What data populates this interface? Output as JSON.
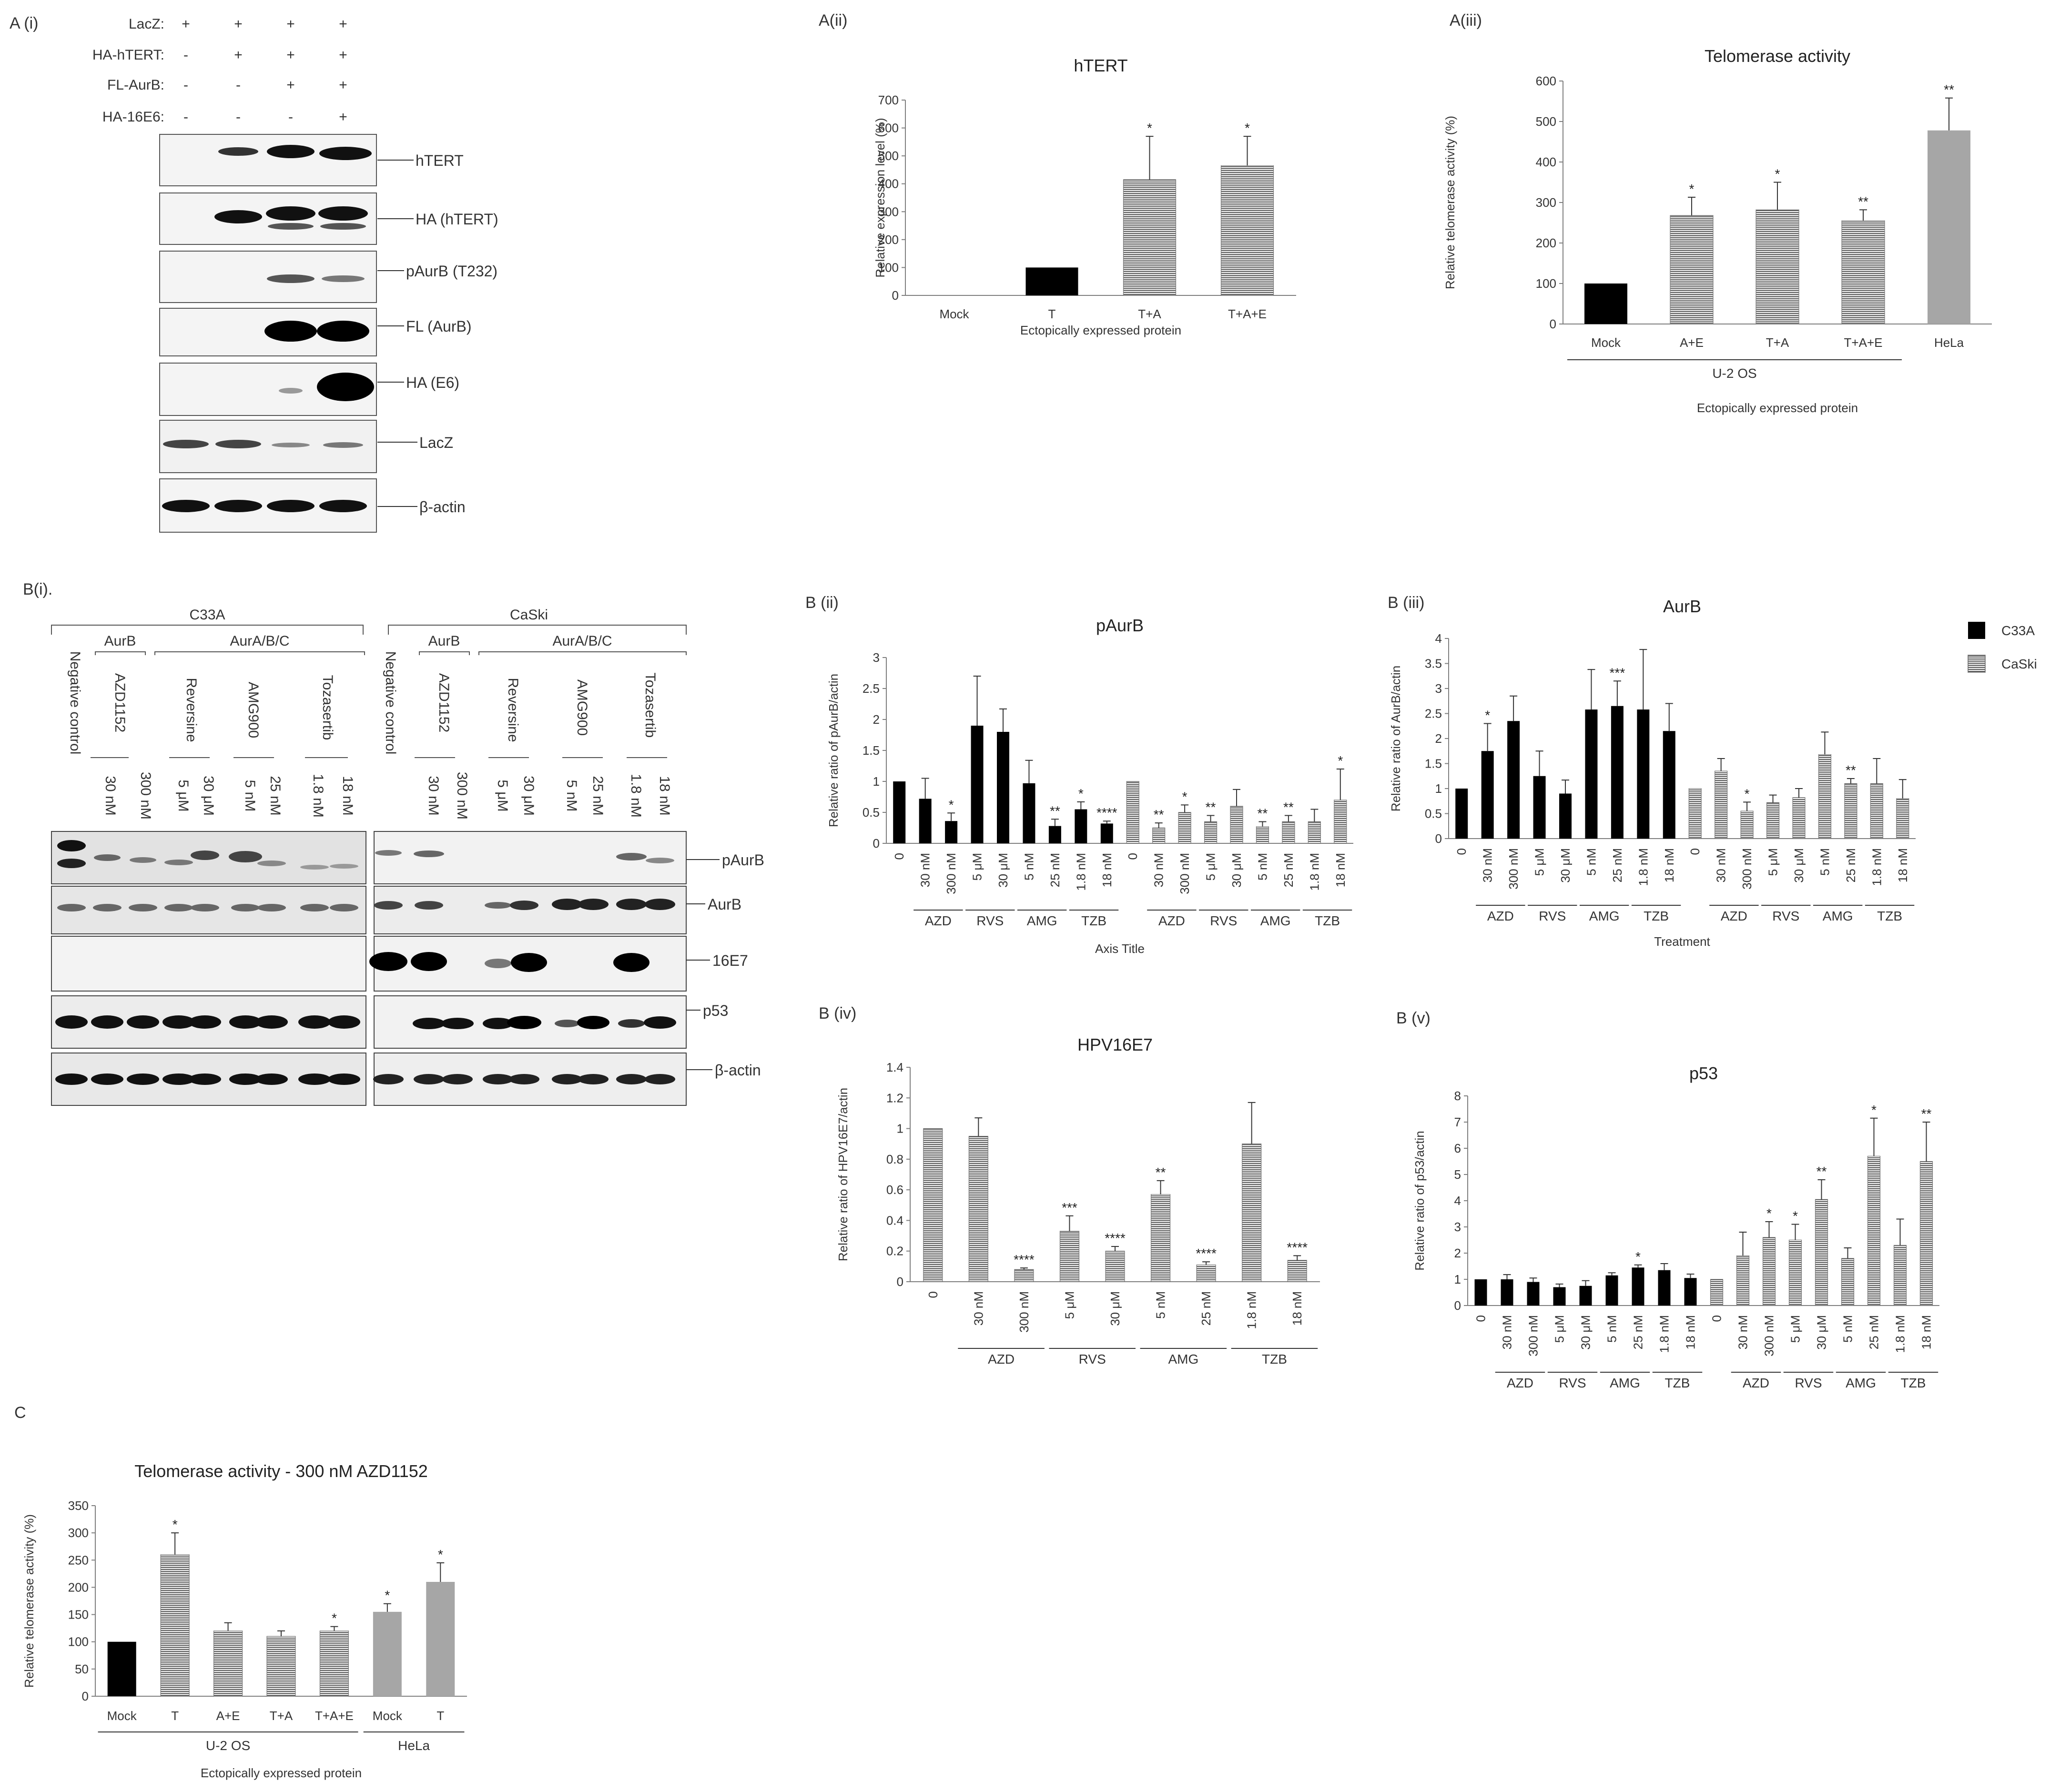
{
  "panels": {
    "ai": "A (i)",
    "aii": "A(ii)",
    "aiii": "A(iii)",
    "bi": "B(i).",
    "bii": "B (ii)",
    "biii": "B (iii)",
    "biv": "B (iv)",
    "bv": "B (v)",
    "c": "C"
  },
  "blot_a": {
    "row_labels": [
      "LacZ:",
      "HA-hTERT:",
      "FL-AurB:",
      "HA-16E6:"
    ],
    "row_signs": [
      [
        "+",
        "+",
        "+",
        "+"
      ],
      [
        "-",
        "+",
        "+",
        "+"
      ],
      [
        "-",
        "-",
        "+",
        "+"
      ],
      [
        "-",
        "-",
        "-",
        "+"
      ]
    ],
    "bands": [
      "hTERT",
      "HA (hTERT)",
      "pAurB (T232)",
      "FL (AurB)",
      "HA (E6)",
      "LacZ",
      "β-actin"
    ]
  },
  "blot_b": {
    "cell_lines": [
      "C33A",
      "CaSki"
    ],
    "target_groups": [
      "AurB",
      "AurA/B/C",
      "AurB",
      "AurA/B/C"
    ],
    "drugs": [
      "AZD1152",
      "Reversine",
      "AMG900",
      "Tozasertib",
      "AZD1152",
      "Reversine",
      "AMG900",
      "Tozasertib"
    ],
    "negative_control": "Negative control",
    "lanes": [
      "30 nM",
      "300 nM",
      "5 μM",
      "30 μM",
      "5 nM",
      "25 nM",
      "1.8 nM",
      "18 nM",
      "30 nM",
      "300 nM",
      "5 μM",
      "30 μM",
      "5 nM",
      "25 nM",
      "1.8 nM",
      "18 nM"
    ],
    "bands": [
      "pAurB",
      "AurB",
      "16E7",
      "p53",
      "β-actin"
    ]
  },
  "legend": {
    "c33a": "C33A",
    "caski": "CaSki"
  },
  "colors": {
    "black": "#000000",
    "gray": "#a6a6a6",
    "axis": "#7f7f7f",
    "stripe": "#555555"
  },
  "chart_data": [
    {
      "id": "aii",
      "type": "bar",
      "title": "hTERT",
      "xlabel": "Ectopically expressed protein",
      "ylabel": "Relative expression level (%)",
      "ylim": [
        0,
        700
      ],
      "yticks": [
        0,
        100,
        200,
        300,
        400,
        500,
        600,
        700
      ],
      "categories": [
        "Mock",
        "T",
        "T+A",
        "T+A+E"
      ],
      "values": [
        0,
        100,
        415,
        465
      ],
      "errors": [
        0,
        0,
        155,
        105
      ],
      "stars": [
        "",
        "",
        "*",
        "*"
      ],
      "fills": [
        "black",
        "black",
        "stripe",
        "stripe"
      ]
    },
    {
      "id": "aiii",
      "type": "bar",
      "title": "Telomerase activity",
      "xlabel": "Ectopically expressed protein",
      "ylabel": "Relative telomerase activity (%)",
      "ylim": [
        0,
        600
      ],
      "yticks": [
        0,
        100,
        200,
        300,
        400,
        500,
        600
      ],
      "categories": [
        "Mock",
        "A+E",
        "T+A",
        "T+A+E",
        "HeLa"
      ],
      "values": [
        100,
        268,
        282,
        255,
        478
      ],
      "errors": [
        0,
        45,
        68,
        27,
        80
      ],
      "stars": [
        "",
        "*",
        "*",
        "**",
        "**"
      ],
      "fills": [
        "black",
        "stripe",
        "stripe",
        "stripe",
        "gray"
      ],
      "group_labels": [
        {
          "label": "U-2 OS",
          "from": 0,
          "to": 3
        }
      ]
    },
    {
      "id": "bii",
      "type": "bar",
      "title": "pAurB",
      "xlabel": "Axis Title",
      "ylabel": "Relative ratio of pAurB/actin",
      "ylim": [
        0,
        3
      ],
      "yticks": [
        0,
        0.5,
        1,
        1.5,
        2,
        2.5,
        3
      ],
      "categories": [
        "0",
        "30 nM",
        "300 nM",
        "5 μM",
        "30 μM",
        "5 nM",
        "25 nM",
        "1.8 nM",
        "18 nM",
        "0",
        "30 nM",
        "300 nM",
        "5 μM",
        "30 μM",
        "5 nM",
        "25 nM",
        "1.8 nM",
        "18 nM"
      ],
      "values": [
        1,
        0.72,
        0.36,
        1.9,
        1.8,
        0.97,
        0.28,
        0.55,
        0.32,
        1,
        0.25,
        0.5,
        0.35,
        0.6,
        0.27,
        0.35,
        0.35,
        0.7
      ],
      "errors": [
        0,
        0.33,
        0.13,
        0.8,
        0.37,
        0.37,
        0.11,
        0.12,
        0.04,
        0,
        0.08,
        0.12,
        0.1,
        0.27,
        0.08,
        0.1,
        0.2,
        0.5
      ],
      "stars": [
        "",
        "",
        "*",
        "",
        "",
        "",
        "**",
        "*",
        "****",
        "",
        "**",
        "*",
        "**",
        "",
        "**",
        "**",
        "",
        "*"
      ],
      "fills": [
        "black",
        "black",
        "black",
        "black",
        "black",
        "black",
        "black",
        "black",
        "black",
        "stripe",
        "stripe",
        "stripe",
        "stripe",
        "stripe",
        "stripe",
        "stripe",
        "stripe",
        "stripe"
      ],
      "group_labels": [
        {
          "label": "AZD",
          "from": 1,
          "to": 2
        },
        {
          "label": "RVS",
          "from": 3,
          "to": 4
        },
        {
          "label": "AMG",
          "from": 5,
          "to": 6
        },
        {
          "label": "TZB",
          "from": 7,
          "to": 8
        },
        {
          "label": "AZD",
          "from": 10,
          "to": 11
        },
        {
          "label": "RVS",
          "from": 12,
          "to": 13
        },
        {
          "label": "AMG",
          "from": 14,
          "to": 15
        },
        {
          "label": "TZB",
          "from": 16,
          "to": 17
        }
      ]
    },
    {
      "id": "biii",
      "type": "bar",
      "title": "AurB",
      "xlabel": "Treatment",
      "ylabel": "Relative ratio of AurB/actin",
      "ylim": [
        0,
        4
      ],
      "yticks": [
        0,
        0.5,
        1,
        1.5,
        2,
        2.5,
        3,
        3.5,
        4
      ],
      "categories": [
        "0",
        "30 nM",
        "300 nM",
        "5 μM",
        "30 μM",
        "5 nM",
        "25 nM",
        "1.8 nM",
        "18 nM",
        "0",
        "30 nM",
        "300 nM",
        "5 μM",
        "30 μM",
        "5 nM",
        "25 nM",
        "1.8 nM",
        "18 nM"
      ],
      "values": [
        1,
        1.75,
        2.35,
        1.25,
        0.9,
        2.58,
        2.65,
        2.58,
        2.15,
        1,
        1.35,
        0.55,
        0.72,
        0.82,
        1.68,
        1.1,
        1.1,
        0.8
      ],
      "errors": [
        0,
        0.55,
        0.5,
        0.5,
        0.27,
        0.8,
        0.5,
        1.2,
        0.55,
        0,
        0.25,
        0.18,
        0.15,
        0.18,
        0.45,
        0.1,
        0.5,
        0.38
      ],
      "stars": [
        "",
        "*",
        "",
        "",
        "",
        "",
        "***",
        "",
        "",
        "",
        "",
        "*",
        "",
        "",
        "",
        "**",
        "",
        ""
      ],
      "fills": [
        "black",
        "black",
        "black",
        "black",
        "black",
        "black",
        "black",
        "black",
        "black",
        "stripe",
        "stripe",
        "stripe",
        "stripe",
        "stripe",
        "stripe",
        "stripe",
        "stripe",
        "stripe"
      ],
      "group_labels": [
        {
          "label": "AZD",
          "from": 1,
          "to": 2
        },
        {
          "label": "RVS",
          "from": 3,
          "to": 4
        },
        {
          "label": "AMG",
          "from": 5,
          "to": 6
        },
        {
          "label": "TZB",
          "from": 7,
          "to": 8
        },
        {
          "label": "AZD",
          "from": 10,
          "to": 11
        },
        {
          "label": "RVS",
          "from": 12,
          "to": 13
        },
        {
          "label": "AMG",
          "from": 14,
          "to": 15
        },
        {
          "label": "TZB",
          "from": 16,
          "to": 17
        }
      ]
    },
    {
      "id": "biv",
      "type": "bar",
      "title": "HPV16E7",
      "xlabel": "Treatment",
      "ylabel": "Relative ratio of HPV16E7/actin",
      "ylim": [
        0,
        1.4
      ],
      "yticks": [
        0,
        0.2,
        0.4,
        0.6,
        0.8,
        1,
        1.2,
        1.4
      ],
      "categories": [
        "0",
        "30 nM",
        "300 nM",
        "5 μM",
        "30 μM",
        "5 nM",
        "25 nM",
        "1.8 nM",
        "18 nM"
      ],
      "values": [
        1,
        0.95,
        0.08,
        0.33,
        0.2,
        0.57,
        0.11,
        0.9,
        0.14
      ],
      "errors": [
        0,
        0.12,
        0.01,
        0.1,
        0.03,
        0.09,
        0.02,
        0.27,
        0.03
      ],
      "stars": [
        "",
        "",
        "****",
        "***",
        "****",
        "**",
        "****",
        "",
        "****"
      ],
      "fills": [
        "stripe",
        "stripe",
        "stripe",
        "stripe",
        "stripe",
        "stripe",
        "stripe",
        "stripe",
        "stripe"
      ],
      "group_labels": [
        {
          "label": "AZD",
          "from": 1,
          "to": 2
        },
        {
          "label": "RVS",
          "from": 3,
          "to": 4
        },
        {
          "label": "AMG",
          "from": 5,
          "to": 6
        },
        {
          "label": "TZB",
          "from": 7,
          "to": 8
        }
      ]
    },
    {
      "id": "bv",
      "type": "bar",
      "title": "p53",
      "xlabel": "Treatment",
      "ylabel": "Relative ratio of p53/actin",
      "ylim": [
        0,
        8
      ],
      "yticks": [
        0,
        1,
        2,
        3,
        4,
        5,
        6,
        7,
        8
      ],
      "categories": [
        "0",
        "30 nM",
        "300 nM",
        "5 μM",
        "30 μM",
        "5 nM",
        "25 nM",
        "1.8 nM",
        "18 nM",
        "0",
        "30 nM",
        "300 nM",
        "5 μM",
        "30 μM",
        "5 nM",
        "25 nM",
        "1.8 nM",
        "18 nM"
      ],
      "values": [
        1,
        1,
        0.9,
        0.7,
        0.75,
        1.15,
        1.45,
        1.35,
        1.05,
        1,
        1.9,
        2.6,
        2.5,
        4.05,
        1.8,
        5.7,
        2.3,
        5.5
      ],
      "errors": [
        0,
        0.18,
        0.15,
        0.12,
        0.2,
        0.1,
        0.1,
        0.25,
        0.15,
        0,
        0.9,
        0.6,
        0.6,
        0.75,
        0.4,
        1.45,
        1.0,
        1.5
      ],
      "stars": [
        "",
        "",
        "",
        "",
        "",
        "",
        "*",
        "",
        "",
        "",
        "",
        "*",
        "*",
        "**",
        "",
        "*",
        "",
        "**"
      ],
      "fills": [
        "black",
        "black",
        "black",
        "black",
        "black",
        "black",
        "black",
        "black",
        "black",
        "stripe",
        "stripe",
        "stripe",
        "stripe",
        "stripe",
        "stripe",
        "stripe",
        "stripe",
        "stripe"
      ],
      "group_labels": [
        {
          "label": "AZD",
          "from": 1,
          "to": 2
        },
        {
          "label": "RVS",
          "from": 3,
          "to": 4
        },
        {
          "label": "AMG",
          "from": 5,
          "to": 6
        },
        {
          "label": "TZB",
          "from": 7,
          "to": 8
        },
        {
          "label": "AZD",
          "from": 10,
          "to": 11
        },
        {
          "label": "RVS",
          "from": 12,
          "to": 13
        },
        {
          "label": "AMG",
          "from": 14,
          "to": 15
        },
        {
          "label": "TZB",
          "from": 16,
          "to": 17
        }
      ]
    },
    {
      "id": "c",
      "type": "bar",
      "title": "Telomerase activity - 300 nM AZD1152",
      "xlabel": "Ectopically expressed protein",
      "ylabel": "Relative telomerase activity (%)",
      "ylim": [
        0,
        350
      ],
      "yticks": [
        0,
        50,
        100,
        150,
        200,
        250,
        300,
        350
      ],
      "categories": [
        "Mock",
        "T",
        "A+E",
        "T+A",
        "T+A+E",
        "Mock",
        "T"
      ],
      "values": [
        100,
        260,
        120,
        110,
        120,
        155,
        210
      ],
      "errors": [
        0,
        40,
        15,
        10,
        8,
        15,
        35
      ],
      "stars": [
        "",
        "*",
        "",
        "",
        "*",
        "*",
        "*"
      ],
      "fills": [
        "black",
        "stripe",
        "stripe",
        "stripe",
        "stripe",
        "gray",
        "gray"
      ],
      "group_labels": [
        {
          "label": "U-2 OS",
          "from": 0,
          "to": 4
        },
        {
          "label": "HeLa",
          "from": 5,
          "to": 6
        }
      ]
    }
  ]
}
